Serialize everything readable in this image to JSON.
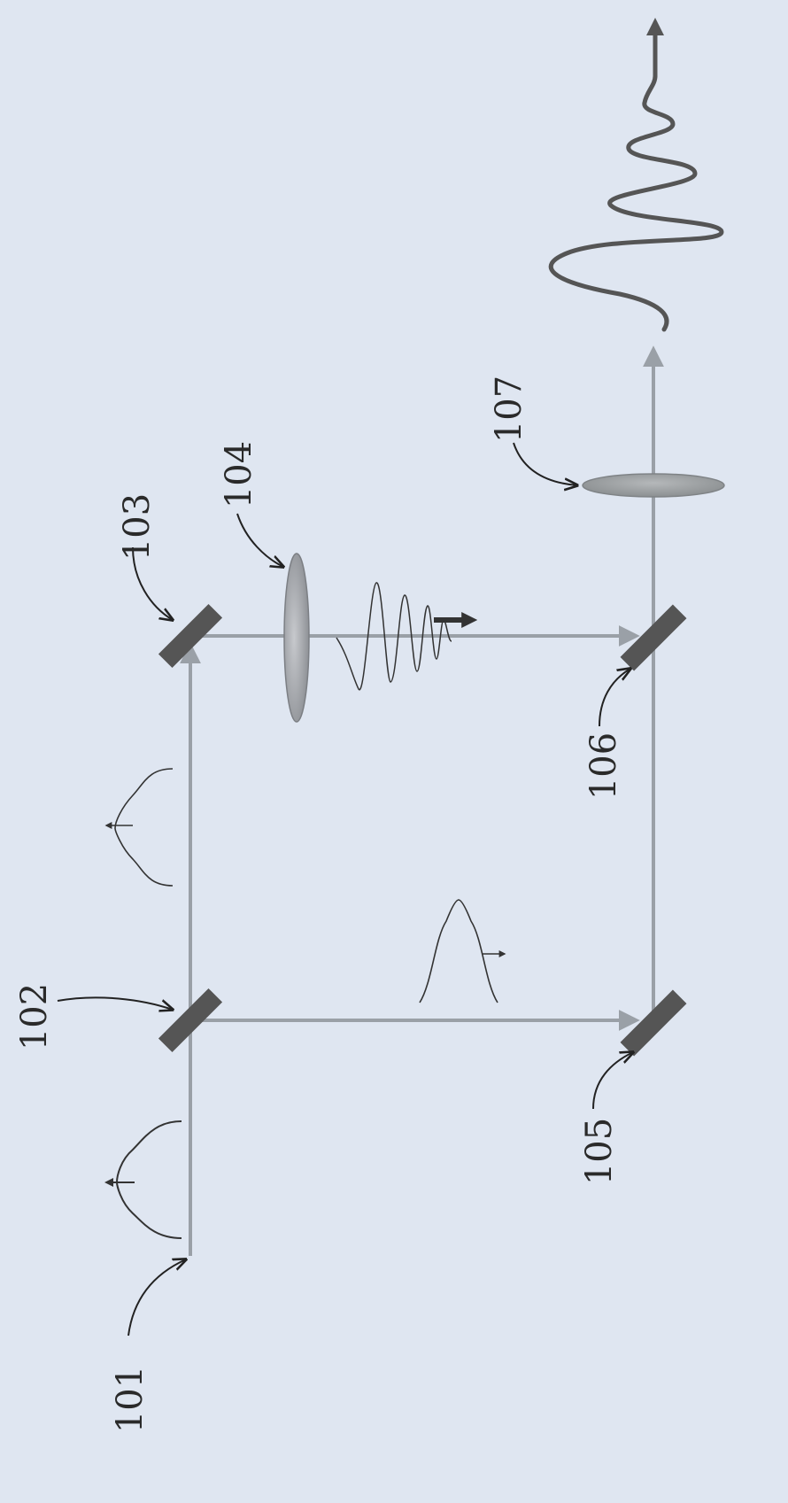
{
  "figure": {
    "background_color": "#dfe6f1",
    "beam_color": "#9aa0a7",
    "mirror_color": "#555555",
    "lens_color": "#9a9ca1",
    "output_lens_color": "#8f9396",
    "waveform_color": "#444444",
    "output_wave_color": "#555555",
    "reference_labels": {
      "r101": "101",
      "r102": "102",
      "r103": "103",
      "r104": "104",
      "r105": "105",
      "r106": "106",
      "r107": "107"
    }
  }
}
